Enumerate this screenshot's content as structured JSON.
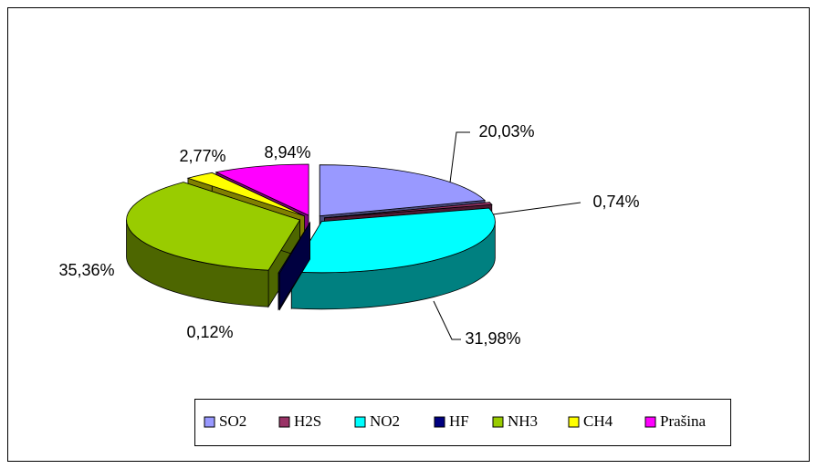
{
  "chart_data": {
    "type": "pie",
    "categories": [
      "SO2",
      "H2S",
      "NO2",
      "HF",
      "NH3",
      "CH4",
      "Prašina"
    ],
    "values": [
      20.03,
      0.74,
      31.98,
      0.12,
      35.36,
      2.77,
      8.94
    ],
    "value_labels": [
      "20,03%",
      "0,74%",
      "31,98%",
      "0,12%",
      "35,36%",
      "2,77%",
      "8,94%"
    ],
    "colors": [
      "#9999ff",
      "#993366",
      "#00ffff",
      "#000080",
      "#99cc00",
      "#ffff00",
      "#ff00ff"
    ],
    "legend": "bottom"
  }
}
